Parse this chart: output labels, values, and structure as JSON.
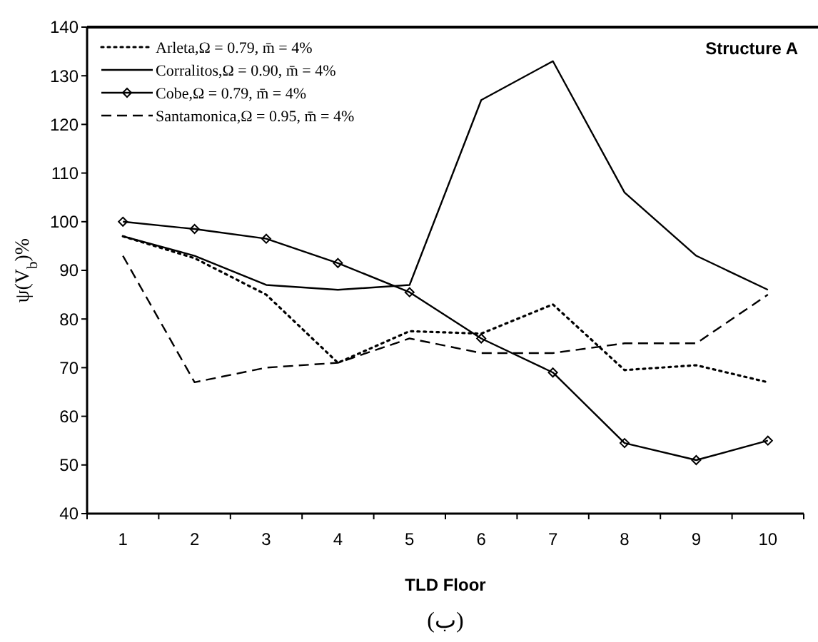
{
  "chart_data": {
    "type": "line",
    "title": "Structure A",
    "xlabel": "TLD Floor",
    "ylabel": "ψ(V$_{b}$)%",
    "annotations": [
      "(ب)"
    ],
    "categories": [
      "1",
      "2",
      "3",
      "4",
      "5",
      "6",
      "7",
      "8",
      "9",
      "10"
    ],
    "ylim": [
      40,
      140
    ],
    "yticks": [
      40,
      50,
      60,
      70,
      80,
      90,
      100,
      110,
      120,
      130,
      140
    ],
    "grid": false,
    "legend": "top left",
    "series": [
      {
        "name": "Arleta,Ω = 0.79, m̄ = 4%",
        "color": "#000000",
        "line_style": "dotted",
        "marker": "none",
        "values": [
          97,
          92.5,
          85,
          71,
          77.5,
          77,
          83,
          69.5,
          70.5,
          67
        ]
      },
      {
        "name": "Corralitos,Ω = 0.90, m̄ = 4%",
        "color": "#000000",
        "line_style": "solid",
        "marker": "none",
        "values": [
          97,
          93,
          87,
          86,
          87,
          125,
          133,
          106,
          93,
          86
        ]
      },
      {
        "name": "Cobe,Ω = 0.79, m̄ = 4%",
        "color": "#000000",
        "line_style": "solid",
        "marker": "diamond",
        "values": [
          100,
          98.5,
          96.5,
          91.5,
          85.5,
          76,
          69,
          54.5,
          51,
          55
        ]
      },
      {
        "name": "Santamonica,Ω = 0.95, m̄ = 4%",
        "color": "#000000",
        "line_style": "dashed",
        "marker": "none",
        "values": [
          93,
          67,
          70,
          71,
          76,
          73,
          73,
          75,
          75,
          85
        ]
      }
    ]
  }
}
